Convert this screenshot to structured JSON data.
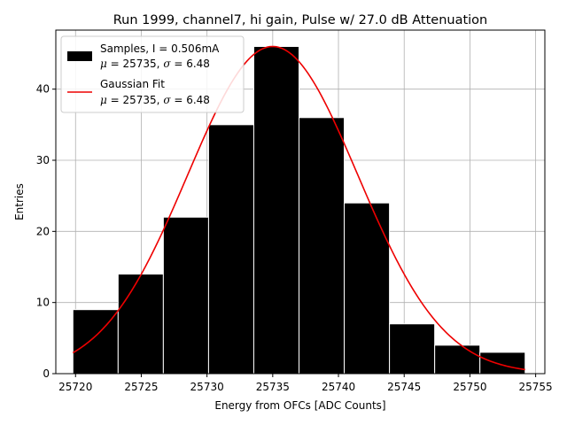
{
  "chart_data": {
    "type": "bar",
    "title": "Run 1999, channel7, hi gain, Pulse w/ 27.0 dB Attenuation",
    "xlabel": "Energy from OFCs [ADC Counts]",
    "ylabel": "Entries",
    "xlim": [
      25718.5,
      25755.7
    ],
    "ylim": [
      0,
      48.3
    ],
    "xticks": [
      25720,
      25725,
      25730,
      25735,
      25740,
      25745,
      25750,
      25755
    ],
    "yticks": [
      0,
      10,
      20,
      30,
      40
    ],
    "grid": true,
    "legend_position": "top-left",
    "bin_edges": [
      25719.8,
      25723.24,
      25726.68,
      25730.12,
      25733.56,
      25737.0,
      25740.44,
      25743.88,
      25747.32,
      25750.76,
      25754.2
    ],
    "values": [
      9,
      14,
      22,
      35,
      46,
      36,
      24,
      7,
      4,
      3
    ],
    "fit": {
      "mu": 25735.0,
      "sigma": 6.48,
      "amplitude": 46.0,
      "x_range": [
        25719.8,
        25754.2
      ]
    },
    "series": [
      {
        "name_line1": "Samples, I = 0.506mA",
        "name_line2_mu": "μ",
        "name_line2_mid": " = 25735, ",
        "name_line2_sigma": "σ",
        "name_line2_end": " = 6.48",
        "color": "#000000"
      },
      {
        "name_line1": "Gaussian Fit",
        "name_line2_mu": "μ",
        "name_line2_mid": " = 25735, ",
        "name_line2_sigma": "σ",
        "name_line2_end": " = 6.48",
        "color": "#ee0000"
      }
    ]
  }
}
